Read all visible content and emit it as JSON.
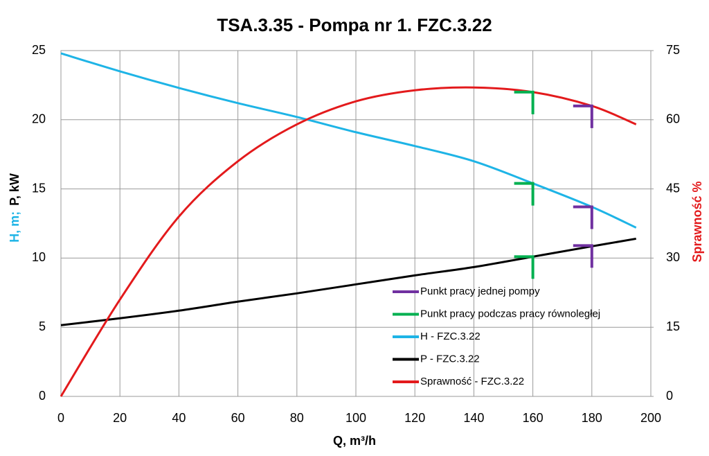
{
  "chart_data": {
    "type": "line",
    "title": "TSA.3.35 - Pompa nr 1. FZC.3.22",
    "x_label": "Q, m³/h",
    "y_label": [
      "H, m;",
      "P, kW"
    ],
    "y2_label": "Sprawność %",
    "xlim": [
      0,
      200
    ],
    "xticks": [
      0,
      20,
      40,
      60,
      80,
      100,
      120,
      140,
      160,
      180,
      200
    ],
    "ylim": [
      0,
      25
    ],
    "yticks": [
      0,
      5,
      10,
      15,
      20,
      25
    ],
    "y2lim": [
      0,
      75
    ],
    "y2ticks": [
      0,
      15,
      30,
      45,
      60,
      75
    ],
    "grid": true,
    "legend": "lower right",
    "series": [
      {
        "name": "Punkt pracy jednej pompy",
        "type": "marker",
        "color": "#7030a0",
        "x": [
          180,
          180,
          180
        ],
        "values": [
          13.7,
          10.9,
          63
        ],
        "axes": [
          "y",
          "y",
          "y2"
        ]
      },
      {
        "name": "Punkt pracy podczas pracy równoległej",
        "type": "marker",
        "color": "#00b050",
        "x": [
          160,
          160,
          160
        ],
        "values": [
          15.4,
          10.1,
          66
        ],
        "axes": [
          "y",
          "y",
          "y2"
        ]
      },
      {
        "name": "H - FZC.3.22",
        "type": "line",
        "color": "#1eb4e6",
        "x": [
          0,
          20,
          40,
          60,
          80,
          100,
          120,
          140,
          160,
          180,
          195
        ],
        "values": [
          24.8,
          23.5,
          22.3,
          21.2,
          20.2,
          19.1,
          18.1,
          17.0,
          15.4,
          13.7,
          12.2
        ]
      },
      {
        "name": "P - FZC.3.22",
        "type": "line",
        "color": "#000000",
        "x": [
          0,
          20,
          40,
          60,
          80,
          100,
          120,
          140,
          160,
          180,
          195
        ],
        "values": [
          5.15,
          5.65,
          6.2,
          6.85,
          7.45,
          8.1,
          8.75,
          9.35,
          10.1,
          10.85,
          11.4
        ]
      },
      {
        "name": "Sprawność - FZC.3.22",
        "type": "line",
        "axis": "y2",
        "color": "#e31a1c",
        "x": [
          0,
          20,
          40,
          60,
          80,
          100,
          120,
          140,
          160,
          180,
          195
        ],
        "values": [
          0,
          21,
          39,
          51,
          59,
          64,
          66.4,
          67,
          66,
          63,
          59
        ]
      }
    ]
  }
}
